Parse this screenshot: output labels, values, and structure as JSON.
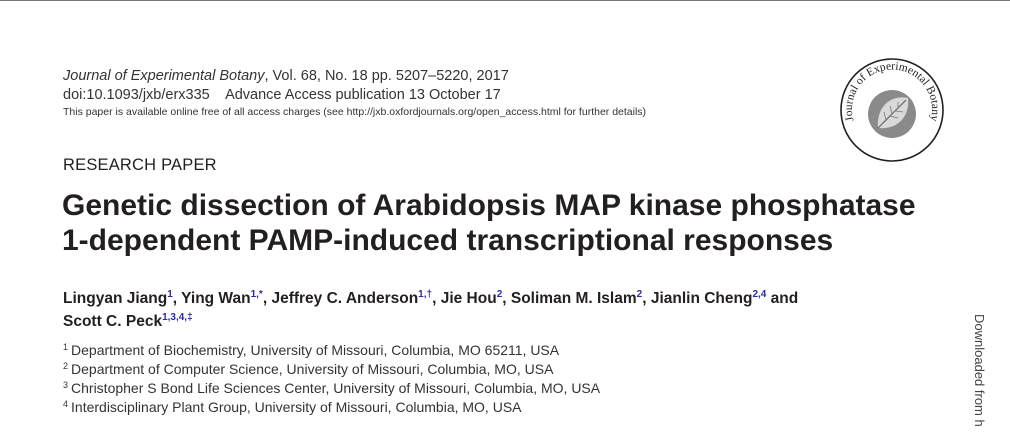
{
  "header": {
    "journal_name": "Journal of Experimental Botany",
    "citation_rest": ", Vol. 68, No. 18 pp. 5207–5220, 2017",
    "doi": "doi:10.1093/jxb/erx335",
    "advance_access": "Advance Access publication 13 October 17",
    "free_access_note": "This paper is available online free of all access charges (see http://jxb.oxfordjournals.org/open_access.html for further details)"
  },
  "logo": {
    "text": "Journal of Experimental Botany",
    "icon": "journal-leaf-seal"
  },
  "paper_type": "RESEARCH PAPER",
  "title": {
    "line1": "Genetic dissection of Arabidopsis MAP kinase phosphatase",
    "line2": "1-dependent PAMP-induced transcriptional responses"
  },
  "authors": [
    {
      "name": "Lingyan Jiang",
      "affil": "1"
    },
    {
      "name": "Ying Wan",
      "affil": "1,*"
    },
    {
      "name": "Jeffrey C. Anderson",
      "affil": "1,†"
    },
    {
      "name": "Jie Hou",
      "affil": "2"
    },
    {
      "name": "Soliman M. Islam",
      "affil": "2"
    },
    {
      "name": "Jianlin Cheng",
      "affil": "2,4"
    },
    {
      "name": "Scott C. Peck",
      "affil": "1,3,4,‡"
    }
  ],
  "author_conjunction": "and",
  "affiliations": [
    {
      "num": "1",
      "text": "Department of Biochemistry, University of Missouri, Columbia, MO 65211, USA"
    },
    {
      "num": "2",
      "text": "Department of Computer Science, University of Missouri, Columbia, MO, USA"
    },
    {
      "num": "3",
      "text": "Christopher S Bond Life Sciences Center, University of Missouri, Columbia, MO, USA"
    },
    {
      "num": "4",
      "text": "Interdisciplinary Plant Group, University of Missouri, Columbia, MO, USA"
    }
  ],
  "side_note": "Downloaded from h",
  "colors": {
    "text": "#231f20",
    "superscript_link": "#2a2aa8",
    "rule": "#777777"
  }
}
